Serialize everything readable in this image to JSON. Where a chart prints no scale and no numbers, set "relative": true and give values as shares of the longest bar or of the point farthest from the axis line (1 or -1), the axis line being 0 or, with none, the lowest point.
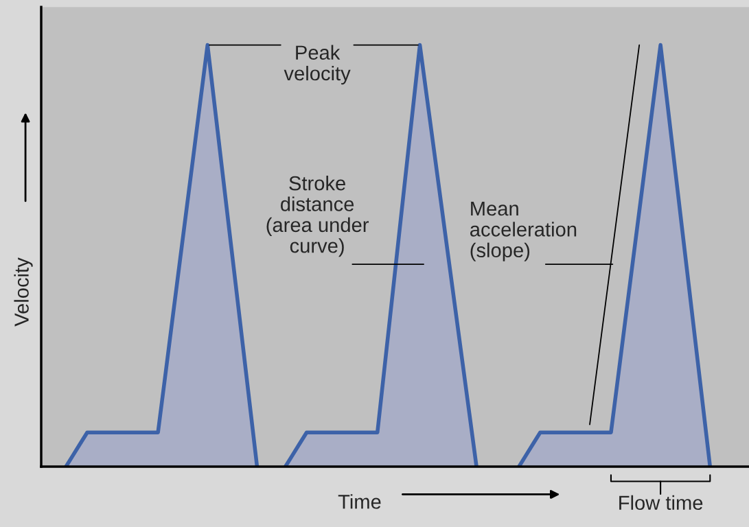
{
  "chart_data": {
    "type": "area",
    "relative": true,
    "xlabel": "Time",
    "ylabel": "Velocity",
    "categories": [
      null,
      null,
      null,
      null,
      null,
      null,
      null,
      null,
      null,
      null,
      null,
      null,
      null,
      null,
      null,
      null,
      null,
      null,
      null,
      null,
      null,
      null,
      null,
      null,
      null,
      null,
      null,
      null,
      null,
      null,
      null,
      null,
      null,
      null,
      null,
      null,
      null,
      null,
      null,
      null,
      null,
      null,
      null,
      null,
      null,
      null,
      null,
      null,
      null,
      null,
      null,
      null,
      null,
      null,
      null,
      null,
      null,
      null,
      null,
      null,
      null,
      null,
      null,
      null,
      null,
      null,
      null,
      null,
      null,
      null,
      null,
      null,
      null,
      null,
      null,
      null,
      null,
      null,
      null,
      null,
      null,
      null,
      null,
      null,
      null,
      null,
      null,
      null,
      null,
      null,
      null,
      null,
      null,
      null,
      null,
      null,
      null,
      null,
      null,
      null
    ],
    "series": [
      {
        "color": "#3d62a8",
        "values": [
          null,
          null,
          null,
          0,
          0.027,
          0.054,
          0.081,
          0.081,
          0.081,
          0.081,
          0.081,
          0.081,
          0.081,
          0.081,
          0.081,
          0.081,
          0.081,
          0.212,
          0.344,
          0.475,
          0.606,
          0.737,
          0.869,
          1,
          0.857,
          0.714,
          0.571,
          0.429,
          0.286,
          0.143,
          0,
          null,
          null,
          null,
          null,
          null,
          null,
          null,
          null,
          null,
          null,
          null,
          null,
          null,
          null,
          null,
          null,
          null,
          null,
          null,
          null,
          null,
          null,
          null,
          null,
          null,
          null,
          null,
          null,
          null,
          null,
          null,
          null,
          null,
          null,
          null,
          null,
          null,
          null,
          null,
          null,
          null,
          null,
          null,
          null,
          null,
          null,
          null,
          null,
          null,
          null,
          null,
          null,
          null,
          null,
          null,
          null,
          null,
          null,
          null,
          null,
          null,
          null,
          null,
          null,
          null,
          null,
          null,
          null,
          null
        ]
      },
      {
        "color": "#3d62a8",
        "values": [
          null,
          null,
          null,
          null,
          null,
          null,
          null,
          null,
          null,
          null,
          null,
          null,
          null,
          null,
          null,
          null,
          null,
          null,
          null,
          null,
          null,
          null,
          null,
          null,
          null,
          null,
          null,
          null,
          null,
          null,
          null,
          null,
          null,
          null,
          0,
          0.027,
          0.054,
          0.081,
          0.081,
          0.081,
          0.081,
          0.081,
          0.081,
          0.081,
          0.081,
          0.081,
          0.081,
          0.081,
          0.234,
          0.387,
          0.541,
          0.694,
          0.847,
          1,
          0.875,
          0.75,
          0.625,
          0.5,
          0.375,
          0.25,
          0.125,
          0,
          null,
          null,
          null,
          null,
          null,
          null,
          null,
          null,
          null,
          null,
          null,
          null,
          null,
          null,
          null,
          null,
          null,
          null,
          null,
          null,
          null,
          null,
          null,
          null,
          null,
          null,
          null,
          null,
          null,
          null,
          null,
          null,
          null,
          null,
          null,
          null,
          null,
          null
        ]
      },
      {
        "color": "#3d62a8",
        "values": [
          null,
          null,
          null,
          null,
          null,
          null,
          null,
          null,
          null,
          null,
          null,
          null,
          null,
          null,
          null,
          null,
          null,
          null,
          null,
          null,
          null,
          null,
          null,
          null,
          null,
          null,
          null,
          null,
          null,
          null,
          null,
          null,
          null,
          null,
          null,
          null,
          null,
          null,
          null,
          null,
          null,
          null,
          null,
          null,
          null,
          null,
          null,
          null,
          null,
          null,
          null,
          null,
          null,
          null,
          null,
          null,
          null,
          null,
          null,
          null,
          null,
          null,
          null,
          null,
          null,
          null,
          null,
          0,
          0.027,
          0.054,
          0.081,
          0.081,
          0.081,
          0.081,
          0.081,
          0.081,
          0.081,
          0.081,
          0.081,
          0.081,
          0.081,
          0.212,
          0.344,
          0.475,
          0.606,
          0.737,
          0.869,
          1,
          0.857,
          0.714,
          0.571,
          0.429,
          0.286,
          0.143,
          0,
          null,
          null,
          null,
          null,
          null
        ]
      },
      {
        "type": "line",
        "color": "#000000",
        "values": [
          null,
          null,
          null,
          null,
          null,
          null,
          null,
          null,
          null,
          null,
          null,
          null,
          null,
          null,
          null,
          null,
          null,
          null,
          null,
          null,
          null,
          null,
          null,
          null,
          null,
          null,
          null,
          null,
          null,
          null,
          null,
          null,
          null,
          null,
          null,
          null,
          null,
          null,
          null,
          null,
          null,
          null,
          null,
          null,
          null,
          null,
          null,
          null,
          null,
          null,
          null,
          null,
          null,
          null,
          null,
          null,
          null,
          null,
          null,
          null,
          null,
          null,
          null,
          null,
          null,
          null,
          null,
          null,
          null,
          null,
          null,
          null,
          null,
          null,
          null,
          null,
          null,
          0.1,
          null,
          null,
          null,
          null,
          null,
          null,
          1,
          null,
          null,
          null,
          null,
          null,
          null,
          null,
          null,
          null,
          null,
          null,
          null,
          null,
          null,
          null
        ]
      }
    ],
    "annotations": [
      "Peak\nvelocity",
      "Stroke\ndistance\n(area under\ncurve)",
      "Mean\nacceleration\n(slope)",
      "Flow time"
    ],
    "legend": false
  }
}
